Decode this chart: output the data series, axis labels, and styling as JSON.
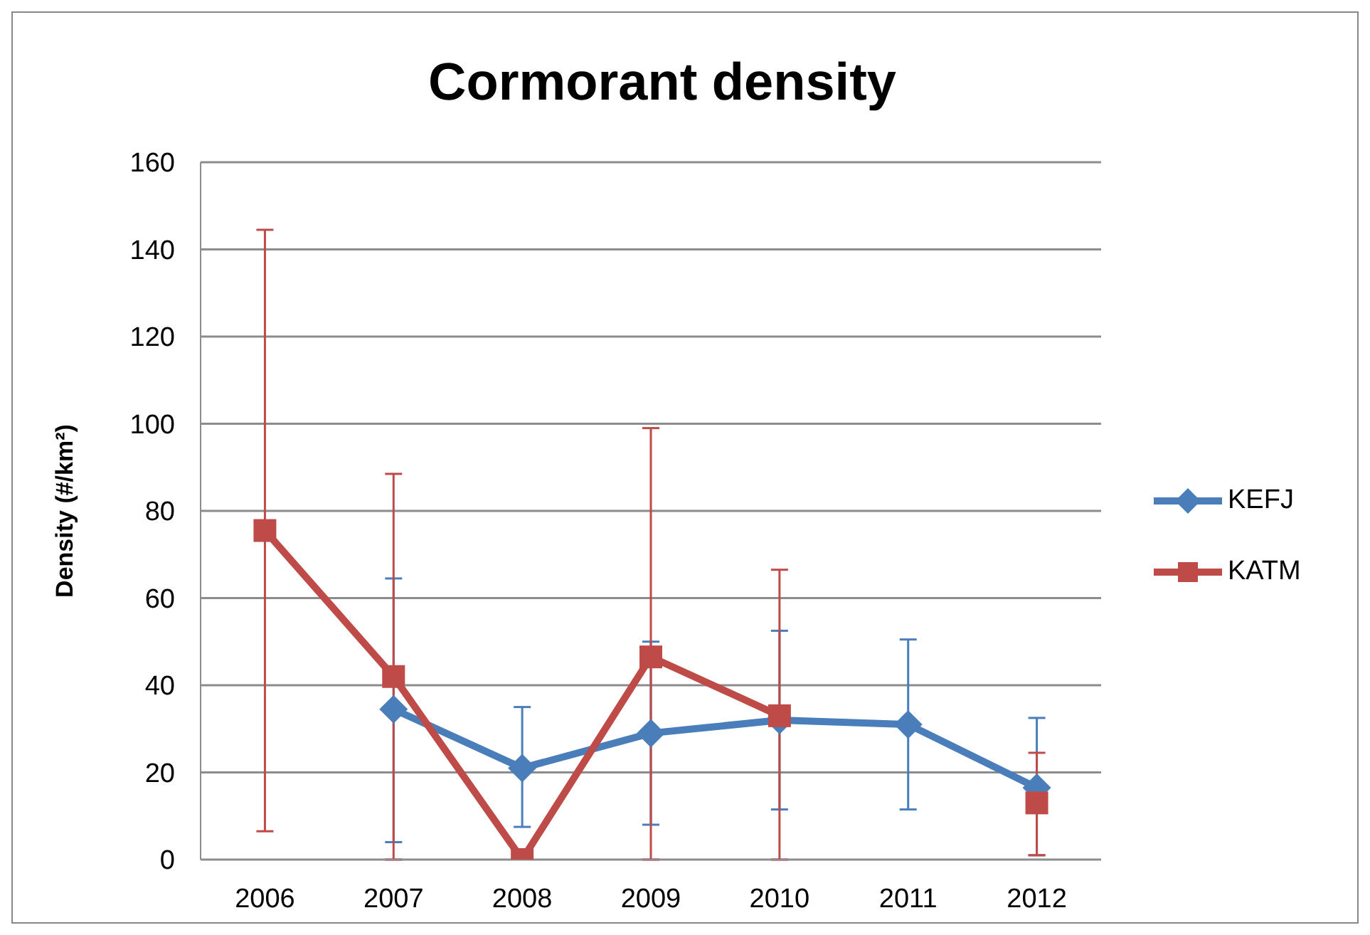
{
  "chart_data": {
    "type": "line",
    "title": "Cormorant density",
    "ylabel": "Density (#/km²)",
    "categories": [
      "2006",
      "2007",
      "2008",
      "2009",
      "2010",
      "2011",
      "2012"
    ],
    "ylim": [
      0,
      160
    ],
    "yticks": [
      0,
      20,
      40,
      60,
      80,
      100,
      120,
      140,
      160
    ],
    "grid": "y",
    "legend": "right",
    "series": [
      {
        "name": "KEFJ",
        "color": "#4a7ebb",
        "marker": "diamond",
        "values": [
          null,
          34.5,
          21,
          29,
          32,
          31,
          16.5
        ],
        "errors": [
          null,
          [
            4,
            64.5
          ],
          [
            7.5,
            35
          ],
          [
            8,
            50
          ],
          [
            11.5,
            52.5
          ],
          [
            11.5,
            50.5
          ],
          [
            1,
            32.5
          ]
        ]
      },
      {
        "name": "KATM",
        "color": "#be4b48",
        "marker": "square",
        "values": [
          75.5,
          42,
          0,
          46.5,
          33,
          null,
          13
        ],
        "errors": [
          [
            6.5,
            144.5
          ],
          [
            0,
            88.5
          ],
          null,
          [
            0,
            99
          ],
          [
            0,
            66.5
          ],
          null,
          [
            1,
            24.5
          ]
        ]
      }
    ]
  }
}
